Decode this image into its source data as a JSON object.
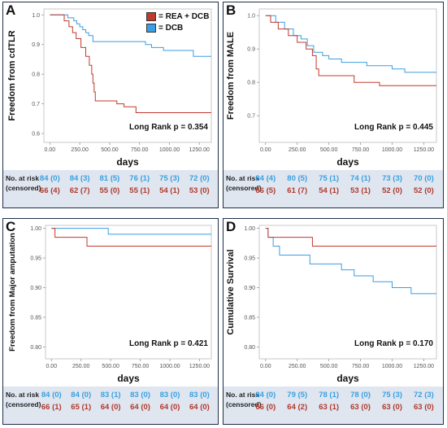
{
  "legend": {
    "rea_label": "= REA + DCB",
    "dcb_label": "= DCB"
  },
  "colors": {
    "rea": "#c0392b",
    "dcb": "#3a9ee4"
  },
  "risk_header": {
    "line1": "No. at risk",
    "line2": "(censored)"
  },
  "panels": {
    "A": {
      "letter": "A",
      "risk_dcb": [
        "84 (0)",
        "84 (3)",
        "81 (5)",
        "76 (1)",
        "75 (3)",
        "72 (0)"
      ],
      "risk_rea": [
        "66 (4)",
        "62 (7)",
        "55 (0)",
        "55 (1)",
        "54 (1)",
        "53 (0)"
      ]
    },
    "B": {
      "letter": "B",
      "risk_dcb": [
        "84 (4)",
        "80 (5)",
        "75 (1)",
        "74 (1)",
        "73 (3)",
        "70 (0)"
      ],
      "risk_rea": [
        "66 (5)",
        "61 (7)",
        "54 (1)",
        "53 (1)",
        "52 (0)",
        "52 (0)"
      ]
    },
    "C": {
      "letter": "C",
      "risk_dcb": [
        "84 (0)",
        "84 (0)",
        "83 (1)",
        "83 (0)",
        "83 (0)",
        "83 (0)"
      ],
      "risk_rea": [
        "66 (1)",
        "65 (1)",
        "64 (0)",
        "64 (0)",
        "64 (0)",
        "64 (0)"
      ]
    },
    "D": {
      "letter": "D",
      "risk_dcb": [
        "84 (0)",
        "79 (5)",
        "78 (1)",
        "78 (0)",
        "75 (3)",
        "72 (3)"
      ],
      "risk_rea": [
        "66 (0)",
        "64 (2)",
        "63 (1)",
        "63 (0)",
        "63 (0)",
        "63 (0)"
      ]
    }
  },
  "chart_data": [
    {
      "type": "line",
      "id": "A",
      "ylabel": "Freedom from cdTLR",
      "xlabel": "days",
      "annotation": "Long Rank p = 0.354",
      "xlim": [
        -50,
        1350
      ],
      "ylim": [
        0.57,
        1.02
      ],
      "xticks": [
        "0.00",
        "250.00",
        "500.00",
        "750.00",
        "1000.00",
        "1250.00"
      ],
      "yticks": [
        "0.6",
        "0.7",
        "0.8",
        "0.9",
        "1.0"
      ],
      "series": [
        {
          "name": "DCB",
          "color": "#3a9ee4",
          "steps": [
            [
              0,
              1.0
            ],
            [
              150,
              0.99
            ],
            [
              200,
              0.98
            ],
            [
              225,
              0.97
            ],
            [
              250,
              0.96
            ],
            [
              275,
              0.95
            ],
            [
              300,
              0.94
            ],
            [
              325,
              0.93
            ],
            [
              360,
              0.91
            ],
            [
              800,
              0.9
            ],
            [
              850,
              0.89
            ],
            [
              950,
              0.88
            ],
            [
              1200,
              0.86
            ],
            [
              1350,
              0.86
            ]
          ]
        },
        {
          "name": "REA + DCB",
          "color": "#c0392b",
          "steps": [
            [
              0,
              1.0
            ],
            [
              120,
              0.98
            ],
            [
              160,
              0.96
            ],
            [
              190,
              0.94
            ],
            [
              220,
              0.92
            ],
            [
              260,
              0.89
            ],
            [
              300,
              0.86
            ],
            [
              330,
              0.83
            ],
            [
              350,
              0.8
            ],
            [
              360,
              0.77
            ],
            [
              370,
              0.74
            ],
            [
              380,
              0.71
            ],
            [
              560,
              0.7
            ],
            [
              620,
              0.69
            ],
            [
              720,
              0.67
            ],
            [
              1350,
              0.67
            ]
          ]
        }
      ]
    },
    {
      "type": "line",
      "id": "B",
      "ylabel": "Freedom from MALE",
      "xlabel": "days",
      "annotation": "Long Rank p = 0.445",
      "xlim": [
        -50,
        1350
      ],
      "ylim": [
        0.62,
        1.02
      ],
      "xticks": [
        "0.00",
        "250.00",
        "500.00",
        "750.00",
        "1000.00",
        "1250.00"
      ],
      "yticks": [
        "0.7",
        "0.8",
        "0.9",
        "1.0"
      ],
      "series": [
        {
          "name": "DCB",
          "color": "#3a9ee4",
          "steps": [
            [
              0,
              1.0
            ],
            [
              80,
              0.98
            ],
            [
              150,
              0.96
            ],
            [
              220,
              0.94
            ],
            [
              280,
              0.93
            ],
            [
              330,
              0.91
            ],
            [
              380,
              0.89
            ],
            [
              450,
              0.88
            ],
            [
              500,
              0.87
            ],
            [
              600,
              0.86
            ],
            [
              800,
              0.85
            ],
            [
              1000,
              0.84
            ],
            [
              1100,
              0.83
            ],
            [
              1350,
              0.83
            ]
          ]
        },
        {
          "name": "REA + DCB",
          "color": "#c0392b",
          "steps": [
            [
              0,
              1.0
            ],
            [
              40,
              0.98
            ],
            [
              100,
              0.96
            ],
            [
              180,
              0.94
            ],
            [
              250,
              0.92
            ],
            [
              320,
              0.9
            ],
            [
              370,
              0.88
            ],
            [
              400,
              0.84
            ],
            [
              420,
              0.82
            ],
            [
              700,
              0.8
            ],
            [
              900,
              0.79
            ],
            [
              1350,
              0.79
            ]
          ]
        }
      ]
    },
    {
      "type": "line",
      "id": "C",
      "ylabel": "Freedom from Major amputation",
      "xlabel": "days",
      "annotation": "Long Rank p = 0.421",
      "xlim": [
        -50,
        1350
      ],
      "ylim": [
        0.78,
        1.005
      ],
      "xticks": [
        "0.00",
        "250.00",
        "500.00",
        "750.00",
        "1000.00",
        "1250.00"
      ],
      "yticks": [
        "0.80",
        "0.85",
        "0.90",
        "0.95",
        "1.00"
      ],
      "series": [
        {
          "name": "DCB",
          "color": "#3a9ee4",
          "steps": [
            [
              0,
              1.0
            ],
            [
              480,
              0.99
            ],
            [
              1350,
              0.99
            ]
          ]
        },
        {
          "name": "REA + DCB",
          "color": "#c0392b",
          "steps": [
            [
              0,
              1.0
            ],
            [
              30,
              0.985
            ],
            [
              300,
              0.97
            ],
            [
              1350,
              0.97
            ]
          ]
        }
      ]
    },
    {
      "type": "line",
      "id": "D",
      "ylabel": "Cumulative Survival",
      "xlabel": "days",
      "annotation": "Long Rank p = 0.170",
      "xlim": [
        -50,
        1350
      ],
      "ylim": [
        0.78,
        1.005
      ],
      "xticks": [
        "0.00",
        "250.00",
        "500.00",
        "750.00",
        "1000.00",
        "1250.00"
      ],
      "yticks": [
        "0.80",
        "0.85",
        "0.90",
        "0.95",
        "1.00"
      ],
      "series": [
        {
          "name": "DCB",
          "color": "#3a9ee4",
          "steps": [
            [
              0,
              1.0
            ],
            [
              20,
              0.985
            ],
            [
              60,
              0.97
            ],
            [
              110,
              0.955
            ],
            [
              350,
              0.94
            ],
            [
              600,
              0.93
            ],
            [
              700,
              0.92
            ],
            [
              850,
              0.91
            ],
            [
              1000,
              0.9
            ],
            [
              1150,
              0.89
            ],
            [
              1350,
              0.89
            ]
          ]
        },
        {
          "name": "REA + DCB",
          "color": "#c0392b",
          "steps": [
            [
              0,
              1.0
            ],
            [
              20,
              0.985
            ],
            [
              370,
              0.97
            ],
            [
              1350,
              0.97
            ]
          ]
        }
      ]
    }
  ]
}
